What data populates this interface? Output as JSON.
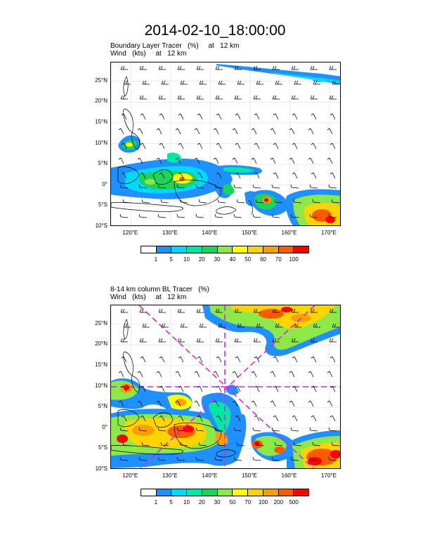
{
  "title": "2014-02-10_18:00:00",
  "panels": [
    {
      "label_line1": "Boundary Layer Tracer   (%)     at   12 km",
      "label_line2": "Wind   (kts)     at   12 km",
      "lat_ticks": [
        "25°N",
        "20°N",
        "15°N",
        "10°N",
        "5°N",
        "0°",
        "5°S",
        "10°S"
      ],
      "lon_ticks": [
        "120°E",
        "130°E",
        "140°E",
        "150°E",
        "160°E",
        "170°E"
      ],
      "colorbar_labels": [
        "1",
        "5",
        "10",
        "20",
        "30",
        "40",
        "50",
        "60",
        "70",
        "100"
      ]
    },
    {
      "label_line1": "8-14 km column BL Tracer   (%)",
      "label_line2": "Wind   (kts)     at   12 km",
      "lat_ticks": [
        "25°N",
        "20°N",
        "15°N",
        "10°N",
        "5°N",
        "0°",
        "5°S",
        "10°S"
      ],
      "lon_ticks": [
        "120°E",
        "130°E",
        "140°E",
        "150°E",
        "160°E",
        "170°E"
      ],
      "colorbar_labels": [
        "1",
        "5",
        "10",
        "20",
        "30",
        "50",
        "70",
        "100",
        "200",
        "500"
      ]
    }
  ],
  "colorbar_colors": [
    "#ffffff",
    "#1e90ff",
    "#00d8ff",
    "#00e7a5",
    "#1fd35a",
    "#8ee84a",
    "#ffff00",
    "#ffd400",
    "#ff9e00",
    "#ff5a00",
    "#ff0000"
  ],
  "map_extent": {
    "lon_min": 115,
    "lon_max": 173,
    "lat_min": -10,
    "lat_max": 29.5
  }
}
